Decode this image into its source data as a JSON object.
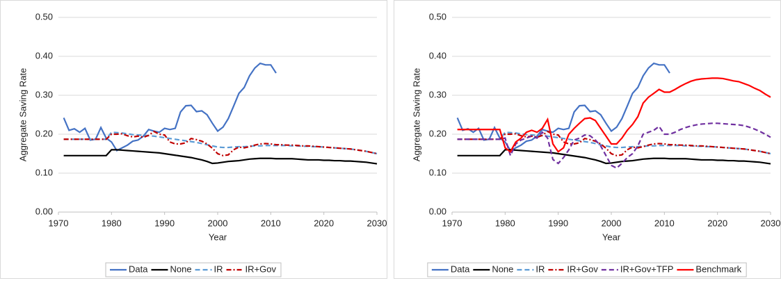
{
  "chart_data": [
    {
      "type": "line",
      "x_label": "Year",
      "y_label": "Aggregate Saving Rate",
      "x": [
        1971,
        1972,
        1973,
        1974,
        1975,
        1976,
        1977,
        1978,
        1979,
        1980,
        1981,
        1982,
        1983,
        1984,
        1985,
        1986,
        1987,
        1988,
        1989,
        1990,
        1991,
        1992,
        1993,
        1994,
        1995,
        1996,
        1997,
        1998,
        1999,
        2000,
        2001,
        2002,
        2003,
        2004,
        2005,
        2006,
        2007,
        2008,
        2009,
        2010,
        2011,
        2012,
        2013,
        2014,
        2015,
        2016,
        2017,
        2018,
        2019,
        2020,
        2021,
        2022,
        2023,
        2024,
        2025,
        2026,
        2027,
        2028,
        2029,
        2030
      ],
      "xlim": [
        1970,
        2030
      ],
      "xticks": [
        1970,
        1980,
        1990,
        2000,
        2010,
        2020,
        2030
      ],
      "ylim": [
        0,
        0.5
      ],
      "yticks": [
        {
          "value": 0,
          "label": "0.00"
        },
        {
          "value": 0.1,
          "label": "0.10"
        },
        {
          "value": 0.2,
          "label": "0.20"
        },
        {
          "value": 0.3,
          "label": "0.30"
        },
        {
          "value": 0.4,
          "label": "0.40"
        },
        {
          "value": 0.5,
          "label": "0.50"
        }
      ],
      "grid": true,
      "legend": "bottom",
      "series": [
        {
          "name": "Data",
          "color": "#4472c4",
          "dash": "solid",
          "values": [
            0.242,
            0.21,
            0.214,
            0.205,
            0.215,
            0.185,
            0.187,
            0.217,
            0.19,
            0.18,
            0.158,
            0.165,
            0.172,
            0.182,
            0.185,
            0.195,
            0.212,
            0.208,
            0.205,
            0.215,
            0.212,
            0.215,
            0.257,
            0.273,
            0.274,
            0.258,
            0.26,
            0.25,
            0.228,
            0.208,
            0.218,
            0.24,
            0.272,
            0.305,
            0.32,
            0.35,
            0.37,
            0.382,
            0.378,
            0.378,
            0.357,
            null,
            null,
            null,
            null,
            null,
            null,
            null,
            null,
            null,
            null,
            null,
            null,
            null,
            null,
            null,
            null,
            null,
            null,
            null
          ]
        },
        {
          "name": "None",
          "color": "#000000",
          "dash": "solid",
          "values": [
            0.145,
            0.145,
            0.145,
            0.145,
            0.145,
            0.145,
            0.145,
            0.145,
            0.145,
            0.16,
            0.16,
            0.159,
            0.158,
            0.157,
            0.156,
            0.155,
            0.154,
            0.153,
            0.152,
            0.15,
            0.148,
            0.146,
            0.144,
            0.142,
            0.14,
            0.137,
            0.134,
            0.13,
            0.125,
            0.126,
            0.128,
            0.13,
            0.131,
            0.132,
            0.134,
            0.136,
            0.137,
            0.138,
            0.138,
            0.138,
            0.137,
            0.137,
            0.137,
            0.137,
            0.136,
            0.135,
            0.134,
            0.134,
            0.134,
            0.133,
            0.133,
            0.132,
            0.132,
            0.131,
            0.131,
            0.13,
            0.129,
            0.128,
            0.126,
            0.124
          ]
        },
        {
          "name": "IR",
          "color": "#5b9bd5",
          "dash": "dash",
          "values": [
            0.187,
            0.187,
            0.187,
            0.187,
            0.187,
            0.187,
            0.187,
            0.187,
            0.187,
            0.205,
            0.204,
            0.203,
            0.201,
            0.199,
            0.198,
            0.197,
            0.196,
            0.195,
            0.193,
            0.191,
            0.189,
            0.187,
            0.185,
            0.183,
            0.181,
            0.179,
            0.176,
            0.173,
            0.17,
            0.167,
            0.166,
            0.166,
            0.167,
            0.168,
            0.168,
            0.169,
            0.17,
            0.17,
            0.171,
            0.171,
            0.171,
            0.171,
            0.171,
            0.17,
            0.17,
            0.169,
            0.169,
            0.168,
            0.168,
            0.167,
            0.166,
            0.165,
            0.164,
            0.163,
            0.162,
            0.16,
            0.158,
            0.156,
            0.153,
            0.15
          ]
        },
        {
          "name": "IR+Gov",
          "color": "#c00000",
          "dash": "dashdot",
          "values": [
            0.187,
            0.187,
            0.187,
            0.187,
            0.187,
            0.187,
            0.187,
            0.187,
            0.187,
            0.2,
            0.2,
            0.201,
            0.196,
            0.193,
            0.195,
            0.192,
            0.197,
            0.207,
            0.2,
            0.198,
            0.18,
            0.175,
            0.175,
            0.178,
            0.189,
            0.186,
            0.182,
            0.175,
            0.164,
            0.15,
            0.145,
            0.147,
            0.16,
            0.167,
            0.165,
            0.168,
            0.172,
            0.175,
            0.176,
            0.175,
            0.173,
            0.173,
            0.172,
            0.172,
            0.171,
            0.17,
            0.17,
            0.169,
            0.168,
            0.167,
            0.166,
            0.165,
            0.164,
            0.163,
            0.162,
            0.16,
            0.158,
            0.156,
            0.153,
            0.15
          ]
        }
      ]
    },
    {
      "type": "line",
      "x_label": "Year",
      "y_label": "Aggregate Saving Rate",
      "x": [
        1971,
        1972,
        1973,
        1974,
        1975,
        1976,
        1977,
        1978,
        1979,
        1980,
        1981,
        1982,
        1983,
        1984,
        1985,
        1986,
        1987,
        1988,
        1989,
        1990,
        1991,
        1992,
        1993,
        1994,
        1995,
        1996,
        1997,
        1998,
        1999,
        2000,
        2001,
        2002,
        2003,
        2004,
        2005,
        2006,
        2007,
        2008,
        2009,
        2010,
        2011,
        2012,
        2013,
        2014,
        2015,
        2016,
        2017,
        2018,
        2019,
        2020,
        2021,
        2022,
        2023,
        2024,
        2025,
        2026,
        2027,
        2028,
        2029,
        2030
      ],
      "xlim": [
        1970,
        2030
      ],
      "xticks": [
        1970,
        1980,
        1990,
        2000,
        2010,
        2020,
        2030
      ],
      "ylim": [
        0,
        0.5
      ],
      "yticks": [
        {
          "value": 0,
          "label": "0.00"
        },
        {
          "value": 0.1,
          "label": "0.10"
        },
        {
          "value": 0.2,
          "label": "0.20"
        },
        {
          "value": 0.3,
          "label": "0.30"
        },
        {
          "value": 0.4,
          "label": "0.40"
        },
        {
          "value": 0.5,
          "label": "0.50"
        }
      ],
      "grid": true,
      "legend": "bottom",
      "series": [
        {
          "name": "Data",
          "color": "#4472c4",
          "dash": "solid",
          "values": [
            0.242,
            0.21,
            0.214,
            0.205,
            0.215,
            0.185,
            0.187,
            0.217,
            0.19,
            0.18,
            0.158,
            0.165,
            0.172,
            0.182,
            0.185,
            0.195,
            0.212,
            0.208,
            0.205,
            0.215,
            0.212,
            0.215,
            0.257,
            0.273,
            0.274,
            0.258,
            0.26,
            0.25,
            0.228,
            0.208,
            0.218,
            0.24,
            0.272,
            0.305,
            0.32,
            0.35,
            0.37,
            0.382,
            0.378,
            0.378,
            0.357,
            null,
            null,
            null,
            null,
            null,
            null,
            null,
            null,
            null,
            null,
            null,
            null,
            null,
            null,
            null,
            null,
            null,
            null,
            null
          ]
        },
        {
          "name": "None",
          "color": "#000000",
          "dash": "solid",
          "values": [
            0.145,
            0.145,
            0.145,
            0.145,
            0.145,
            0.145,
            0.145,
            0.145,
            0.145,
            0.16,
            0.16,
            0.159,
            0.158,
            0.157,
            0.156,
            0.155,
            0.154,
            0.153,
            0.152,
            0.15,
            0.148,
            0.146,
            0.144,
            0.142,
            0.14,
            0.137,
            0.134,
            0.13,
            0.125,
            0.126,
            0.128,
            0.13,
            0.131,
            0.132,
            0.134,
            0.136,
            0.137,
            0.138,
            0.138,
            0.138,
            0.137,
            0.137,
            0.137,
            0.137,
            0.136,
            0.135,
            0.134,
            0.134,
            0.134,
            0.133,
            0.133,
            0.132,
            0.132,
            0.131,
            0.131,
            0.13,
            0.129,
            0.128,
            0.126,
            0.124
          ]
        },
        {
          "name": "IR",
          "color": "#5b9bd5",
          "dash": "dash",
          "values": [
            0.187,
            0.187,
            0.187,
            0.187,
            0.187,
            0.187,
            0.187,
            0.187,
            0.187,
            0.205,
            0.204,
            0.203,
            0.201,
            0.199,
            0.198,
            0.197,
            0.196,
            0.195,
            0.193,
            0.191,
            0.189,
            0.187,
            0.185,
            0.183,
            0.181,
            0.179,
            0.176,
            0.173,
            0.17,
            0.167,
            0.166,
            0.166,
            0.167,
            0.168,
            0.168,
            0.169,
            0.17,
            0.17,
            0.171,
            0.171,
            0.171,
            0.171,
            0.171,
            0.17,
            0.17,
            0.169,
            0.169,
            0.168,
            0.168,
            0.167,
            0.166,
            0.165,
            0.164,
            0.163,
            0.162,
            0.16,
            0.158,
            0.156,
            0.153,
            0.15
          ]
        },
        {
          "name": "IR+Gov",
          "color": "#c00000",
          "dash": "dashdot",
          "values": [
            0.187,
            0.187,
            0.187,
            0.187,
            0.187,
            0.187,
            0.187,
            0.187,
            0.187,
            0.2,
            0.2,
            0.201,
            0.196,
            0.193,
            0.195,
            0.192,
            0.197,
            0.207,
            0.2,
            0.198,
            0.18,
            0.175,
            0.175,
            0.178,
            0.189,
            0.186,
            0.182,
            0.175,
            0.164,
            0.15,
            0.145,
            0.147,
            0.16,
            0.167,
            0.165,
            0.168,
            0.172,
            0.175,
            0.176,
            0.175,
            0.173,
            0.173,
            0.172,
            0.172,
            0.171,
            0.17,
            0.17,
            0.169,
            0.168,
            0.167,
            0.166,
            0.165,
            0.164,
            0.163,
            0.162,
            0.16,
            0.158,
            0.156,
            0.153,
            0.15
          ]
        },
        {
          "name": "IR+Gov+TFP",
          "color": "#7030a0",
          "dash": "dash",
          "values": [
            0.187,
            0.187,
            0.187,
            0.187,
            0.187,
            0.187,
            0.187,
            0.187,
            0.187,
            0.19,
            0.145,
            0.175,
            0.185,
            0.19,
            0.195,
            0.19,
            0.205,
            0.19,
            0.135,
            0.125,
            0.14,
            0.16,
            0.185,
            0.19,
            0.198,
            0.196,
            0.185,
            0.17,
            0.145,
            0.12,
            0.113,
            0.125,
            0.14,
            0.15,
            0.17,
            0.2,
            0.205,
            0.21,
            0.22,
            0.2,
            0.2,
            0.205,
            0.212,
            0.217,
            0.221,
            0.224,
            0.226,
            0.227,
            0.228,
            0.228,
            0.227,
            0.226,
            0.225,
            0.224,
            0.222,
            0.218,
            0.213,
            0.207,
            0.2,
            0.192
          ]
        },
        {
          "name": "Benchmark",
          "color": "#ff0000",
          "dash": "solid",
          "values": [
            0.212,
            0.212,
            0.212,
            0.212,
            0.212,
            0.212,
            0.212,
            0.212,
            0.212,
            0.165,
            0.155,
            0.18,
            0.19,
            0.205,
            0.21,
            0.205,
            0.215,
            0.238,
            0.175,
            0.155,
            0.165,
            0.2,
            0.215,
            0.228,
            0.24,
            0.242,
            0.235,
            0.215,
            0.195,
            0.175,
            0.175,
            0.19,
            0.21,
            0.225,
            0.245,
            0.28,
            0.295,
            0.305,
            0.315,
            0.308,
            0.308,
            0.315,
            0.323,
            0.33,
            0.336,
            0.34,
            0.342,
            0.343,
            0.344,
            0.344,
            0.343,
            0.34,
            0.337,
            0.335,
            0.33,
            0.325,
            0.318,
            0.312,
            0.303,
            0.295
          ]
        }
      ]
    }
  ]
}
